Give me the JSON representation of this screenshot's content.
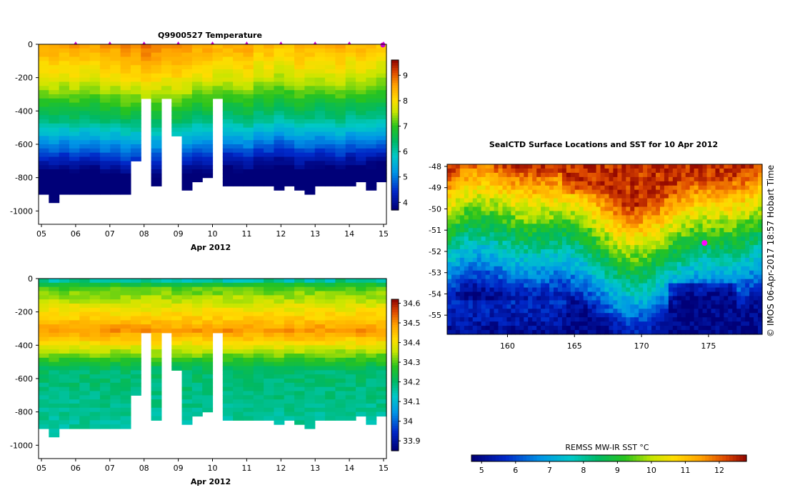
{
  "chart_data": [
    {
      "type": "heatmap",
      "title": "Q9900527  Temperature",
      "xlabel": "Apr 2012",
      "ylabel": "",
      "x_ticks": [
        "05",
        "06",
        "07",
        "08",
        "09",
        "10",
        "11",
        "12",
        "13",
        "14",
        "15"
      ],
      "y_ticks": [
        0,
        -200,
        -400,
        -600,
        -800,
        -1000
      ],
      "ylim": [
        -1080,
        0
      ],
      "colorbar": {
        "ticks": [
          4,
          5,
          6,
          7,
          8,
          9
        ],
        "range": [
          3.7,
          9.6
        ]
      },
      "profile_depth_m": [
        900,
        950,
        880,
        880,
        900,
        890,
        890,
        880,
        900,
        700,
        310,
        850,
        310,
        530,
        860,
        820,
        800,
        310,
        840,
        830,
        850,
        840,
        850,
        870,
        850,
        860,
        880,
        830,
        830,
        840,
        830,
        820,
        860,
        820
      ],
      "surface_temp_c": [
        8.6,
        8.7,
        8.6,
        8.7,
        8.6,
        8.6,
        8.8,
        8.7,
        8.9,
        8.8,
        9.0,
        8.9,
        8.8,
        8.9,
        8.8,
        8.6,
        8.7,
        8.5,
        8.5,
        8.6,
        8.7,
        8.4,
        8.5,
        8.3,
        8.4,
        8.6,
        8.5,
        8.4,
        8.5,
        8.6,
        8.4,
        8.5,
        8.4,
        8.3
      ],
      "markers": {
        "color": "#cc00cc",
        "days": [
          "06",
          "07",
          "08",
          "09",
          "10",
          "11",
          "12",
          "13",
          "14",
          "15"
        ]
      }
    },
    {
      "type": "heatmap",
      "title": "",
      "xlabel": "Apr 2012",
      "ylabel": "",
      "x_ticks": [
        "05",
        "06",
        "07",
        "08",
        "09",
        "10",
        "11",
        "12",
        "13",
        "14",
        "15"
      ],
      "y_ticks": [
        0,
        -200,
        -400,
        -600,
        -800,
        -1000
      ],
      "ylim": [
        -1080,
        0
      ],
      "colorbar": {
        "ticks": [
          "33.9",
          "34",
          "34.1",
          "34.2",
          "34.3",
          "34.4",
          "34.5",
          "34.6"
        ],
        "range": [
          33.85,
          34.62
        ]
      },
      "salinity_profile": {
        "surface": 34.2,
        "max_near_300m": 34.5,
        "deep": 34.15
      }
    },
    {
      "type": "heatmap",
      "title": "SealCTD Surface Locations and SST for 10 Apr 2012",
      "xlabel": "",
      "ylabel": "",
      "x_ticks": [
        "160",
        "165",
        "170",
        "175"
      ],
      "y_ticks": [
        "-48",
        "-49",
        "-50",
        "-51",
        "-52",
        "-53",
        "-54",
        "-55"
      ],
      "xlim": [
        155.5,
        179
      ],
      "ylim": [
        -55.9,
        -47.9
      ],
      "colorbar": {
        "label": "REMSS MW-IR SST °C",
        "ticks": [
          "5",
          "6",
          "7",
          "8",
          "9",
          "10",
          "11",
          "12"
        ],
        "range": [
          4.7,
          12.8
        ]
      },
      "seal_location": {
        "lon": 174.7,
        "lat": -51.6,
        "color": "#ff00ff"
      }
    }
  ],
  "credit": "©  IMOS 06-Apr-2017 18:57 Hobart Time"
}
